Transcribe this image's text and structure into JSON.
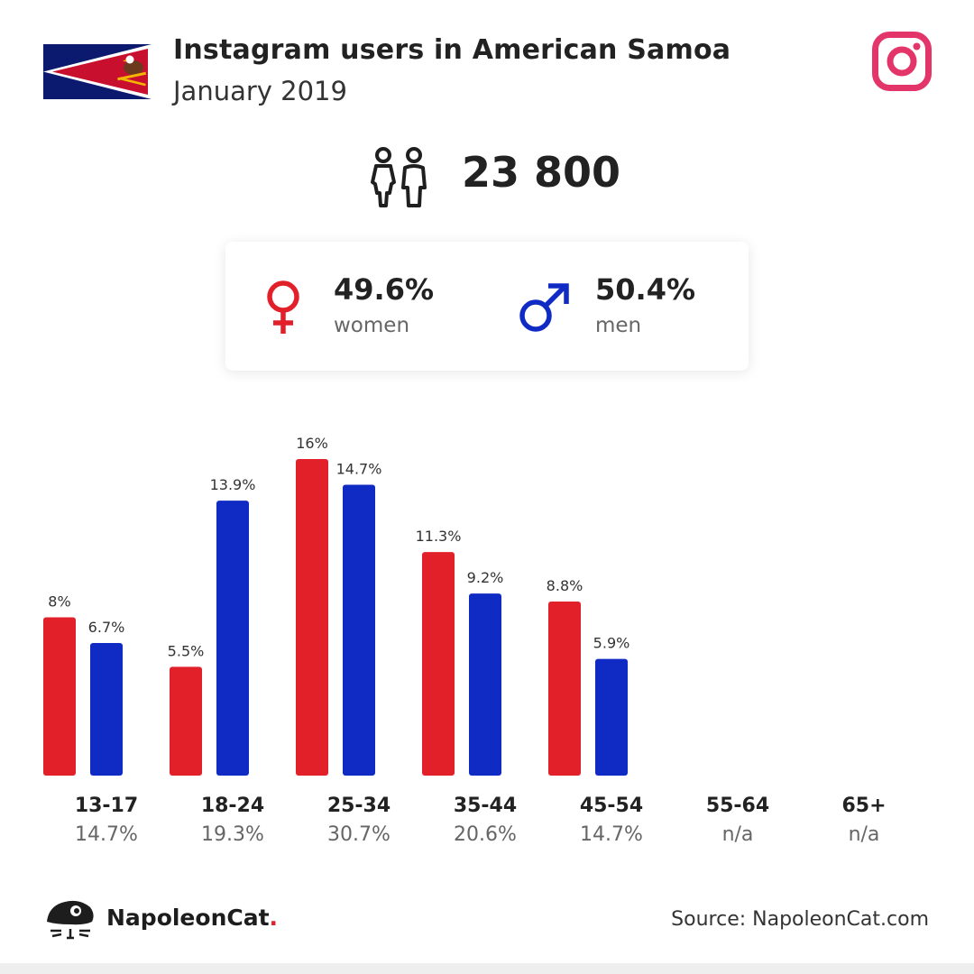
{
  "header": {
    "title": "Instagram users in American Samoa",
    "subtitle": "January 2019"
  },
  "icons": {
    "flag": "american-samoa-flag",
    "social": "instagram-icon",
    "users": "users-icon",
    "female": "female-symbol-icon",
    "male": "male-symbol-icon",
    "brand": "napoleoncat-logo-icon"
  },
  "totals": {
    "users": "23 800"
  },
  "gender": {
    "women": {
      "percent": "49.6%",
      "label": "women"
    },
    "men": {
      "percent": "50.4%",
      "label": "men"
    }
  },
  "colors": {
    "women": "#e2202a",
    "men": "#0f2bc4",
    "instagram": "#e4356b"
  },
  "chart_data": {
    "type": "bar",
    "categories": [
      "13-17",
      "18-24",
      "25-34",
      "35-44",
      "45-54",
      "55-64",
      "65+"
    ],
    "category_totals": [
      "14.7%",
      "19.3%",
      "30.7%",
      "20.6%",
      "14.7%",
      "n/a",
      "n/a"
    ],
    "series": [
      {
        "values": [
          8,
          5.5,
          16,
          11.3,
          8.8,
          null,
          null
        ],
        "labels": [
          "8%",
          "5.5%",
          "16%",
          "11.3%",
          "8.8%",
          "",
          ""
        ]
      },
      {
        "values": [
          6.7,
          13.9,
          14.7,
          9.2,
          5.9,
          null,
          null
        ],
        "labels": [
          "6.7%",
          "13.9%",
          "14.7%",
          "9.2%",
          "5.9%",
          "",
          ""
        ]
      }
    ],
    "ylim": [
      0,
      16
    ],
    "grid": false
  },
  "footer": {
    "brand": "NapoleonCat",
    "brand_dot": ".",
    "source": "Source: NapoleonCat.com"
  }
}
